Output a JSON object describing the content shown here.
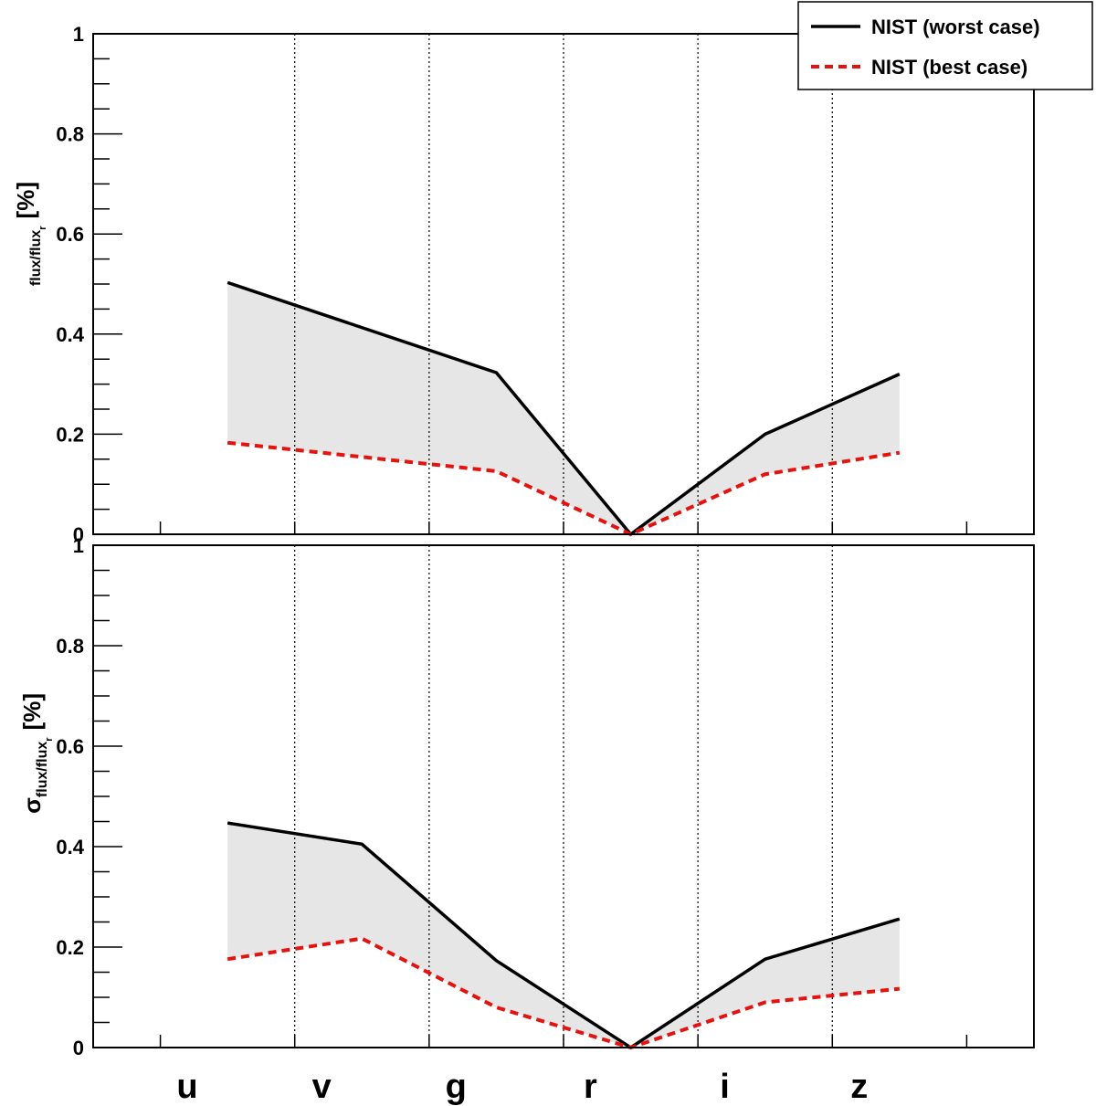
{
  "chart_data": [
    {
      "type": "line",
      "panel": "top",
      "categories": [
        "u",
        "v",
        "g",
        "r",
        "i",
        "z"
      ],
      "x": [
        1.5,
        2.5,
        3.5,
        4.5,
        5.5,
        6.5
      ],
      "xlim": [
        0.5,
        7.5
      ],
      "ylim": [
        0,
        1
      ],
      "yticks": [
        "0",
        "0.2",
        "0.4",
        "0.6",
        "0.8",
        "1"
      ],
      "ylabel": {
        "symbol": "",
        "main": "flux/flux",
        "subscript": "r",
        "unit": "[%]"
      },
      "series": [
        {
          "name": "NIST (worst case)",
          "color": "#000000",
          "style": "solid",
          "points": [
            [
              1.5,
              0.503
            ],
            [
              3.5,
              0.323
            ],
            [
              4.5,
              0.0
            ],
            [
              5.5,
              0.2
            ],
            [
              6.5,
              0.32
            ]
          ]
        },
        {
          "name": "NIST (best case)",
          "color": "#e3130f",
          "style": "dashed",
          "points": [
            [
              1.5,
              0.183
            ],
            [
              3.5,
              0.126
            ],
            [
              4.5,
              0.0
            ],
            [
              5.5,
              0.12
            ],
            [
              6.5,
              0.163
            ]
          ]
        }
      ],
      "band_fill": "#e6e6e6",
      "grid": "vertical-dotted"
    },
    {
      "type": "line",
      "panel": "bottom",
      "categories": [
        "u",
        "v",
        "g",
        "r",
        "i",
        "z"
      ],
      "x": [
        1.5,
        2.5,
        3.5,
        4.5,
        5.5,
        6.5
      ],
      "xlim": [
        0.5,
        7.5
      ],
      "ylim": [
        0,
        1
      ],
      "yticks": [
        "0",
        "0.2",
        "0.4",
        "0.6",
        "0.8",
        "1"
      ],
      "ylabel": {
        "symbol": "σ",
        "main": "flux/flux",
        "subscript": "r",
        "unit": "[%]"
      },
      "series": [
        {
          "name": "NIST (worst case)",
          "color": "#000000",
          "style": "solid",
          "points": [
            [
              1.5,
              0.447
            ],
            [
              2.5,
              0.405
            ],
            [
              3.5,
              0.173
            ],
            [
              4.5,
              0.0
            ],
            [
              5.5,
              0.176
            ],
            [
              6.5,
              0.256
            ]
          ]
        },
        {
          "name": "NIST (best case)",
          "color": "#e3130f",
          "style": "dashed",
          "points": [
            [
              1.5,
              0.176
            ],
            [
              2.5,
              0.217
            ],
            [
              3.5,
              0.08
            ],
            [
              4.5,
              0.0
            ],
            [
              5.5,
              0.09
            ],
            [
              6.5,
              0.117
            ]
          ]
        }
      ],
      "band_fill": "#e6e6e6",
      "grid": "vertical-dotted"
    }
  ],
  "legend": {
    "position": "top-right",
    "entries": [
      {
        "label": "NIST (worst case)",
        "color": "#000000",
        "style": "solid"
      },
      {
        "label": "NIST (best case)",
        "color": "#e3130f",
        "style": "dashed"
      }
    ]
  },
  "x_category_labels": [
    "u",
    "v",
    "g",
    "r",
    "i",
    "z"
  ]
}
